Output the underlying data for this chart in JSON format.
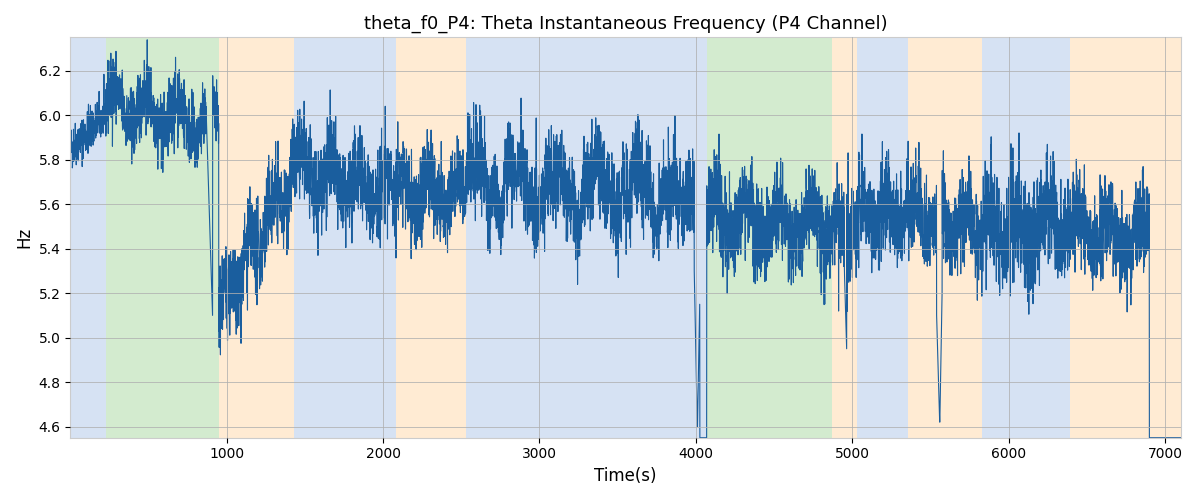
{
  "title": "theta_f0_P4: Theta Instantaneous Frequency (P4 Channel)",
  "xlabel": "Time(s)",
  "ylabel": "Hz",
  "xlim": [
    0,
    7100
  ],
  "ylim": [
    4.55,
    6.35
  ],
  "yticks": [
    4.6,
    4.8,
    5.0,
    5.2,
    5.4,
    5.6,
    5.8,
    6.0,
    6.2
  ],
  "xticks": [
    1000,
    2000,
    3000,
    4000,
    5000,
    6000,
    7000
  ],
  "line_color": "#1a5e9e",
  "line_width": 0.8,
  "bg_color": "#ffffff",
  "grid_color": "#b0b0b0",
  "bands": [
    {
      "start": 0,
      "end": 230,
      "color": "#aec6e8",
      "alpha": 0.5
    },
    {
      "start": 230,
      "end": 950,
      "color": "#a8d8a0",
      "alpha": 0.5
    },
    {
      "start": 950,
      "end": 1430,
      "color": "#ffd9a8",
      "alpha": 0.5
    },
    {
      "start": 1430,
      "end": 2080,
      "color": "#aec6e8",
      "alpha": 0.5
    },
    {
      "start": 2080,
      "end": 2530,
      "color": "#ffd9a8",
      "alpha": 0.5
    },
    {
      "start": 2530,
      "end": 3870,
      "color": "#aec6e8",
      "alpha": 0.5
    },
    {
      "start": 3870,
      "end": 4020,
      "color": "#aec6e8",
      "alpha": 0.5
    },
    {
      "start": 4020,
      "end": 4070,
      "color": "#aec6e8",
      "alpha": 0.5
    },
    {
      "start": 4070,
      "end": 4870,
      "color": "#a8d8a0",
      "alpha": 0.5
    },
    {
      "start": 4870,
      "end": 5030,
      "color": "#ffd9a8",
      "alpha": 0.5
    },
    {
      "start": 5030,
      "end": 5360,
      "color": "#aec6e8",
      "alpha": 0.5
    },
    {
      "start": 5360,
      "end": 5830,
      "color": "#ffd9a8",
      "alpha": 0.5
    },
    {
      "start": 5830,
      "end": 6390,
      "color": "#aec6e8",
      "alpha": 0.5
    },
    {
      "start": 6390,
      "end": 7100,
      "color": "#ffd9a8",
      "alpha": 0.5
    }
  ],
  "seed": 42,
  "n_points": 6900,
  "t_start": 0,
  "t_end": 7100
}
